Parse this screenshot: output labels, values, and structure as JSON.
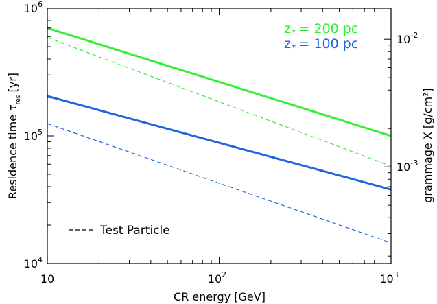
{
  "chart_data": {
    "type": "line",
    "xlabel": "CR energy [GeV]",
    "ylabel_left": "Residence time τ",
    "ylabel_left_sub": "res",
    "ylabel_left_unit": "[yr]",
    "ylabel_right": "grammage X [g/cm²]",
    "x_scale": "log",
    "y_scale": "log",
    "xlim": [
      10,
      1000
    ],
    "ylim": [
      10000,
      1000000
    ],
    "y2lim": [
      0.000175,
      0.0175
    ],
    "x_ticks": [
      {
        "value": 10,
        "label": "10"
      },
      {
        "value": 100,
        "label": "10",
        "sup": "2"
      },
      {
        "value": 1000,
        "label": "10",
        "sup": "3"
      }
    ],
    "y_ticks": [
      {
        "value": 10000,
        "label": "10",
        "sup": "4"
      },
      {
        "value": 100000,
        "label": "10",
        "sup": "5"
      },
      {
        "value": 1000000,
        "label": "10",
        "sup": "6"
      }
    ],
    "y2_ticks": [
      {
        "value": 0.001,
        "label": "10",
        "sup": "-3"
      },
      {
        "value": 0.01,
        "label": "10",
        "sup": "-2"
      }
    ],
    "series": [
      {
        "name": "z* = 200 pc",
        "label_main": "z",
        "label_sub": "*",
        "label_rest": "= 200 pc",
        "style": "solid",
        "color": "#33ee33",
        "x": [
          10,
          1000
        ],
        "y": [
          700000,
          100000
        ]
      },
      {
        "style": "dashed",
        "color": "#33ee33",
        "x": [
          10,
          1000
        ],
        "y": [
          590000,
          58000
        ]
      },
      {
        "name": "z* = 100 pc",
        "label_main": "z",
        "label_sub": "*",
        "label_rest": "= 100 pc",
        "style": "solid",
        "color": "#1f66dd",
        "x": [
          10,
          1000
        ],
        "y": [
          205000,
          38000
        ]
      },
      {
        "style": "dashed",
        "color": "#1f66dd",
        "x": [
          10,
          1000
        ],
        "y": [
          125000,
          14500
        ]
      }
    ],
    "annotation": "Test Particle",
    "legend_position": "top-right"
  }
}
